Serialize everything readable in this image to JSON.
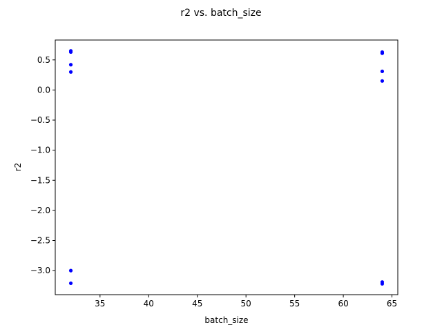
{
  "chart_data": {
    "type": "scatter",
    "title": "r2 vs. batch_size",
    "xlabel": "batch_size",
    "ylabel": "r2",
    "xlim": [
      30.4,
      65.6
    ],
    "ylim": [
      -3.4,
      0.83
    ],
    "x_ticks": [
      35,
      40,
      45,
      50,
      55,
      60,
      65
    ],
    "y_ticks": [
      0.5,
      0.0,
      -0.5,
      -1.0,
      -1.5,
      -2.0,
      -2.5,
      -3.0
    ],
    "x_tick_labels": [
      "35",
      "40",
      "45",
      "50",
      "55",
      "60",
      "65"
    ],
    "y_tick_labels": [
      "0.5",
      "0.0",
      "−0.5",
      "−1.0",
      "−1.5",
      "−2.0",
      "−2.5",
      "−3.0"
    ],
    "grid": false,
    "marker_color": "#0000ff",
    "points": [
      {
        "x": 32,
        "y": 0.65
      },
      {
        "x": 32,
        "y": 0.63
      },
      {
        "x": 32,
        "y": 0.42
      },
      {
        "x": 32,
        "y": 0.3
      },
      {
        "x": 32,
        "y": -3.0
      },
      {
        "x": 32,
        "y": -3.21
      },
      {
        "x": 64,
        "y": 0.63
      },
      {
        "x": 64,
        "y": 0.61
      },
      {
        "x": 64,
        "y": 0.31
      },
      {
        "x": 64,
        "y": 0.15
      },
      {
        "x": 64,
        "y": -3.19
      },
      {
        "x": 64,
        "y": -3.22
      }
    ]
  }
}
